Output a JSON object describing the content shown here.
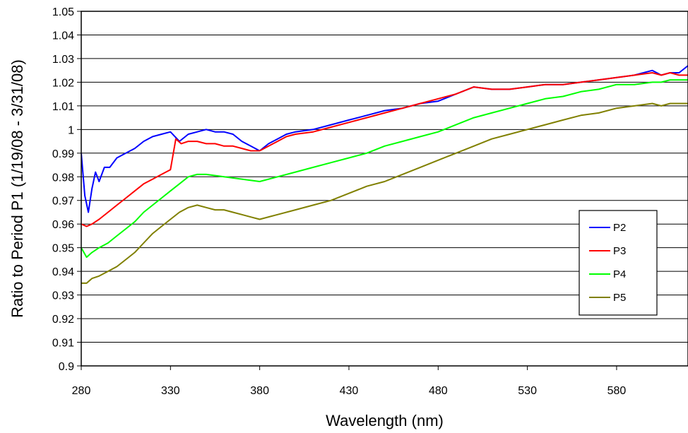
{
  "chart_data": {
    "type": "line",
    "xlabel": "Wavelength (nm)",
    "ylabel": "Ratio to Period P1 (1/19/08 - 3/31/08)",
    "xlim": [
      280,
      620
    ],
    "ylim": [
      0.9,
      1.05
    ],
    "x_ticks": [
      280,
      330,
      380,
      430,
      480,
      530,
      580
    ],
    "x_tick_labels": [
      "280",
      "330",
      "380",
      "430",
      "480",
      "530",
      "580"
    ],
    "y_ticks": [
      0.9,
      0.91,
      0.92,
      0.93,
      0.94,
      0.95,
      0.96,
      0.97,
      0.98,
      0.99,
      1.0,
      1.01,
      1.02,
      1.03,
      1.04,
      1.05
    ],
    "y_tick_labels": [
      "0.9",
      "0.91",
      "0.92",
      "0.93",
      "0.94",
      "0.95",
      "0.96",
      "0.97",
      "0.98",
      "0.99",
      "1",
      "1.01",
      "1.02",
      "1.03",
      "1.04",
      "1.05"
    ],
    "grid": "horizontal",
    "legend_position": "right",
    "series": [
      {
        "name": "P2",
        "color": "#0000ff",
        "x": [
          280,
          282,
          284,
          286,
          288,
          290,
          293,
          296,
          300,
          305,
          310,
          315,
          320,
          325,
          330,
          335,
          340,
          345,
          350,
          355,
          360,
          365,
          370,
          375,
          380,
          385,
          390,
          395,
          400,
          410,
          420,
          430,
          440,
          450,
          460,
          470,
          480,
          490,
          500,
          510,
          520,
          530,
          540,
          550,
          560,
          570,
          580,
          590,
          600,
          605,
          610,
          615,
          620
        ],
        "y": [
          0.99,
          0.972,
          0.965,
          0.975,
          0.982,
          0.978,
          0.984,
          0.984,
          0.988,
          0.99,
          0.992,
          0.995,
          0.997,
          0.998,
          0.999,
          0.995,
          0.998,
          0.999,
          1.0,
          0.999,
          0.999,
          0.998,
          0.995,
          0.993,
          0.991,
          0.994,
          0.996,
          0.998,
          0.999,
          1.0,
          1.002,
          1.004,
          1.006,
          1.008,
          1.009,
          1.011,
          1.012,
          1.015,
          1.018,
          1.017,
          1.017,
          1.018,
          1.019,
          1.019,
          1.02,
          1.021,
          1.022,
          1.023,
          1.025,
          1.023,
          1.024,
          1.024,
          1.027
        ]
      },
      {
        "name": "P3",
        "color": "#ff0000",
        "x": [
          280,
          283,
          286,
          290,
          295,
          300,
          305,
          310,
          315,
          320,
          325,
          330,
          333,
          336,
          340,
          345,
          350,
          355,
          360,
          365,
          370,
          375,
          380,
          385,
          390,
          395,
          400,
          410,
          420,
          430,
          440,
          450,
          460,
          470,
          480,
          490,
          500,
          510,
          520,
          530,
          540,
          550,
          560,
          570,
          580,
          590,
          600,
          605,
          610,
          615,
          620
        ],
        "y": [
          0.96,
          0.959,
          0.96,
          0.962,
          0.965,
          0.968,
          0.971,
          0.974,
          0.977,
          0.979,
          0.981,
          0.983,
          0.996,
          0.994,
          0.995,
          0.995,
          0.994,
          0.994,
          0.993,
          0.993,
          0.992,
          0.991,
          0.991,
          0.993,
          0.995,
          0.997,
          0.998,
          0.999,
          1.001,
          1.003,
          1.005,
          1.007,
          1.009,
          1.011,
          1.013,
          1.015,
          1.018,
          1.017,
          1.017,
          1.018,
          1.019,
          1.019,
          1.02,
          1.021,
          1.022,
          1.023,
          1.024,
          1.023,
          1.024,
          1.023,
          1.023
        ]
      },
      {
        "name": "P4",
        "color": "#00ff00",
        "x": [
          280,
          283,
          286,
          290,
          295,
          300,
          305,
          310,
          315,
          320,
          325,
          330,
          335,
          340,
          345,
          350,
          360,
          370,
          380,
          390,
          400,
          410,
          420,
          430,
          440,
          450,
          460,
          470,
          480,
          490,
          500,
          510,
          520,
          530,
          540,
          550,
          560,
          570,
          580,
          590,
          600,
          605,
          610,
          615,
          620
        ],
        "y": [
          0.95,
          0.946,
          0.948,
          0.95,
          0.952,
          0.955,
          0.958,
          0.961,
          0.965,
          0.968,
          0.971,
          0.974,
          0.977,
          0.98,
          0.981,
          0.981,
          0.98,
          0.979,
          0.978,
          0.98,
          0.982,
          0.984,
          0.986,
          0.988,
          0.99,
          0.993,
          0.995,
          0.997,
          0.999,
          1.002,
          1.005,
          1.007,
          1.009,
          1.011,
          1.013,
          1.014,
          1.016,
          1.017,
          1.019,
          1.019,
          1.02,
          1.02,
          1.021,
          1.021,
          1.021
        ]
      },
      {
        "name": "P5",
        "color": "#808000",
        "x": [
          280,
          283,
          286,
          290,
          295,
          300,
          305,
          310,
          315,
          320,
          325,
          330,
          335,
          340,
          345,
          350,
          355,
          360,
          365,
          370,
          375,
          380,
          390,
          400,
          410,
          420,
          430,
          440,
          450,
          460,
          470,
          480,
          490,
          500,
          510,
          520,
          530,
          540,
          550,
          560,
          570,
          580,
          590,
          600,
          605,
          610,
          615,
          620
        ],
        "y": [
          0.935,
          0.935,
          0.937,
          0.938,
          0.94,
          0.942,
          0.945,
          0.948,
          0.952,
          0.956,
          0.959,
          0.962,
          0.965,
          0.967,
          0.968,
          0.967,
          0.966,
          0.966,
          0.965,
          0.964,
          0.963,
          0.962,
          0.964,
          0.966,
          0.968,
          0.97,
          0.973,
          0.976,
          0.978,
          0.981,
          0.984,
          0.987,
          0.99,
          0.993,
          0.996,
          0.998,
          1.0,
          1.002,
          1.004,
          1.006,
          1.007,
          1.009,
          1.01,
          1.011,
          1.01,
          1.011,
          1.011,
          1.011
        ]
      }
    ]
  }
}
